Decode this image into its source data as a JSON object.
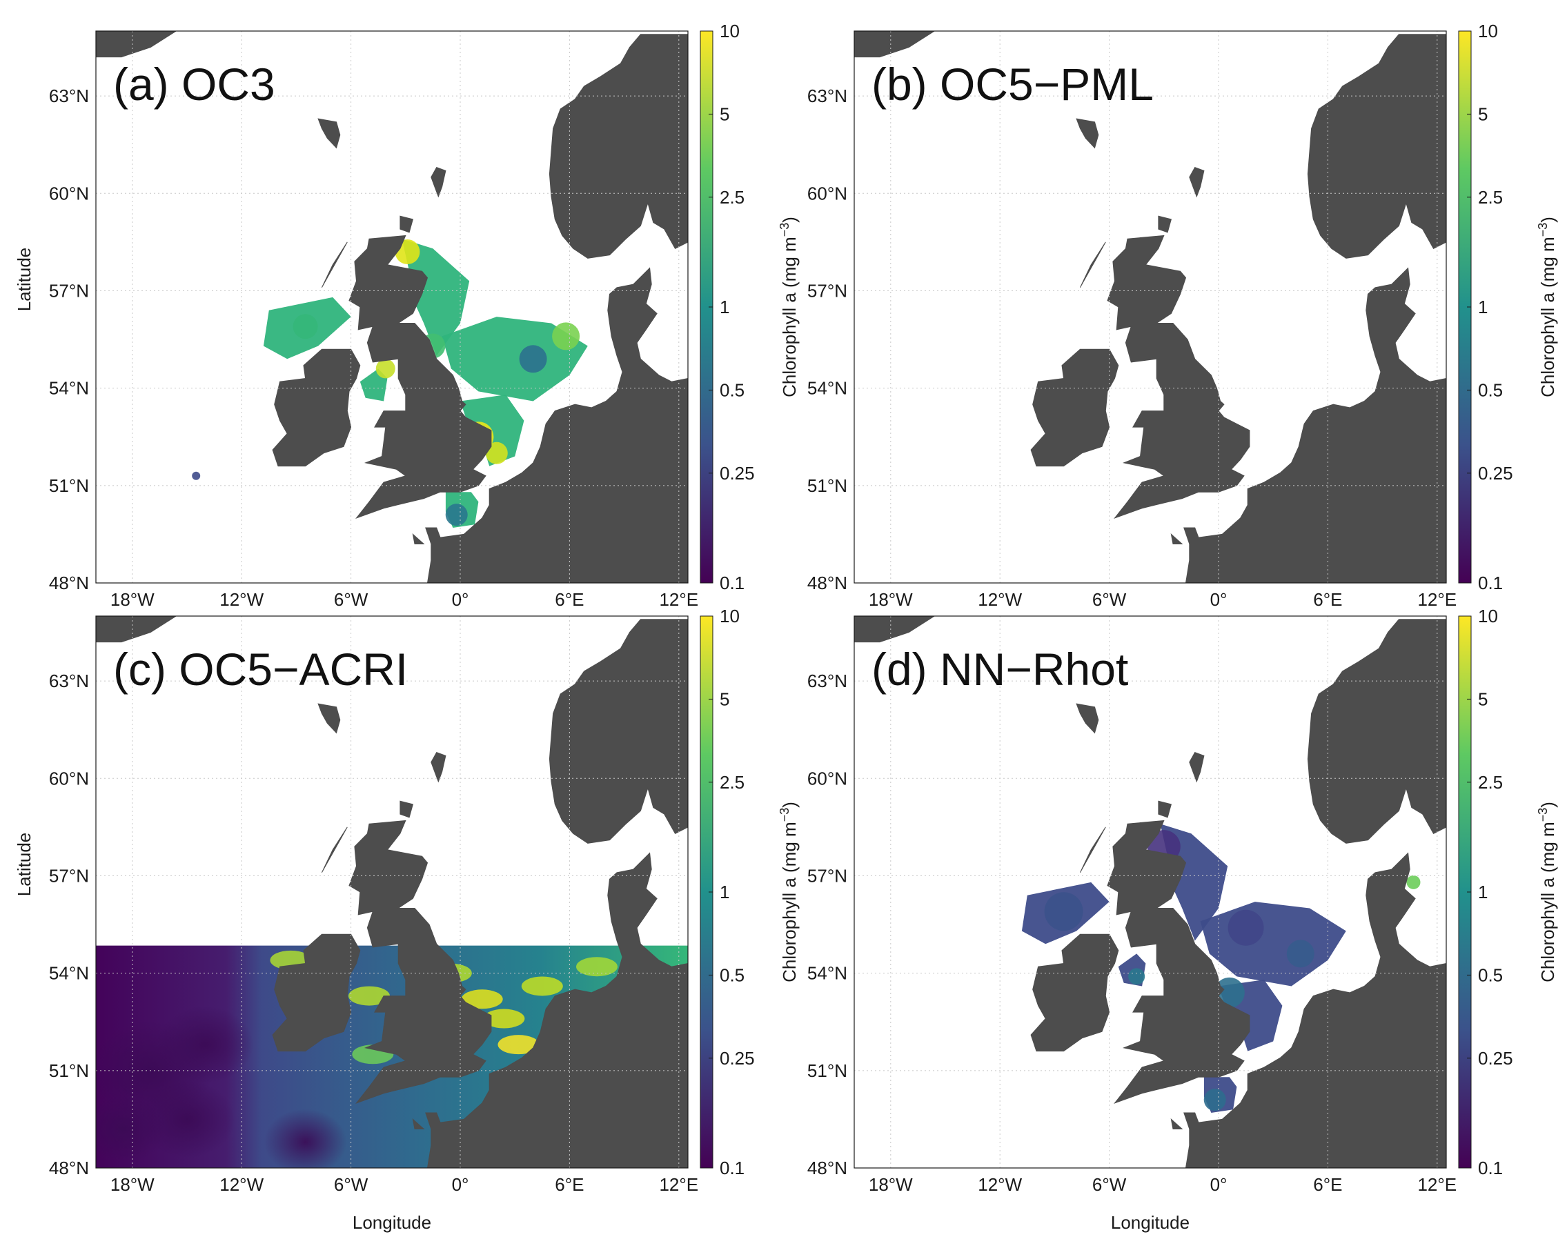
{
  "axes": {
    "x_label": "Longitude",
    "y_label": "Latitude",
    "x_ticks": [
      "18°W",
      "12°W",
      "6°W",
      "0°",
      "6°E",
      "12°E"
    ],
    "y_ticks": [
      "63°N",
      "60°N",
      "57°N",
      "54°N",
      "51°N",
      "48°N"
    ],
    "x_range_deg": [
      -20,
      12.5
    ],
    "y_range_deg": [
      48,
      65
    ]
  },
  "colorbar": {
    "label": "Chlorophyll a (mg m",
    "label_superscript": "−3",
    "label_close": ")",
    "ticks": [
      "10",
      "5",
      "2.5",
      "1",
      "0.5",
      "0.25",
      "0.1"
    ],
    "tick_values": [
      10,
      5,
      2.5,
      1,
      0.5,
      0.25,
      0.1
    ],
    "scale": "log",
    "colormap": "viridis",
    "colors": [
      "#440154",
      "#3b528b",
      "#21918c",
      "#5ec962",
      "#fde725"
    ]
  },
  "colors": {
    "land": "#4d4d4d",
    "no_data": "#ffffff",
    "grid": "#c8c8c8"
  },
  "panels": [
    {
      "id": "a",
      "title": "(a) OC3",
      "coverage": "partial"
    },
    {
      "id": "b",
      "title": "(b) OC5−PML",
      "coverage": "none"
    },
    {
      "id": "c",
      "title": "(c) OC5−ACRI",
      "coverage": "full-south"
    },
    {
      "id": "d",
      "title": "(d) NN−Rhot",
      "coverage": "partial"
    }
  ]
}
